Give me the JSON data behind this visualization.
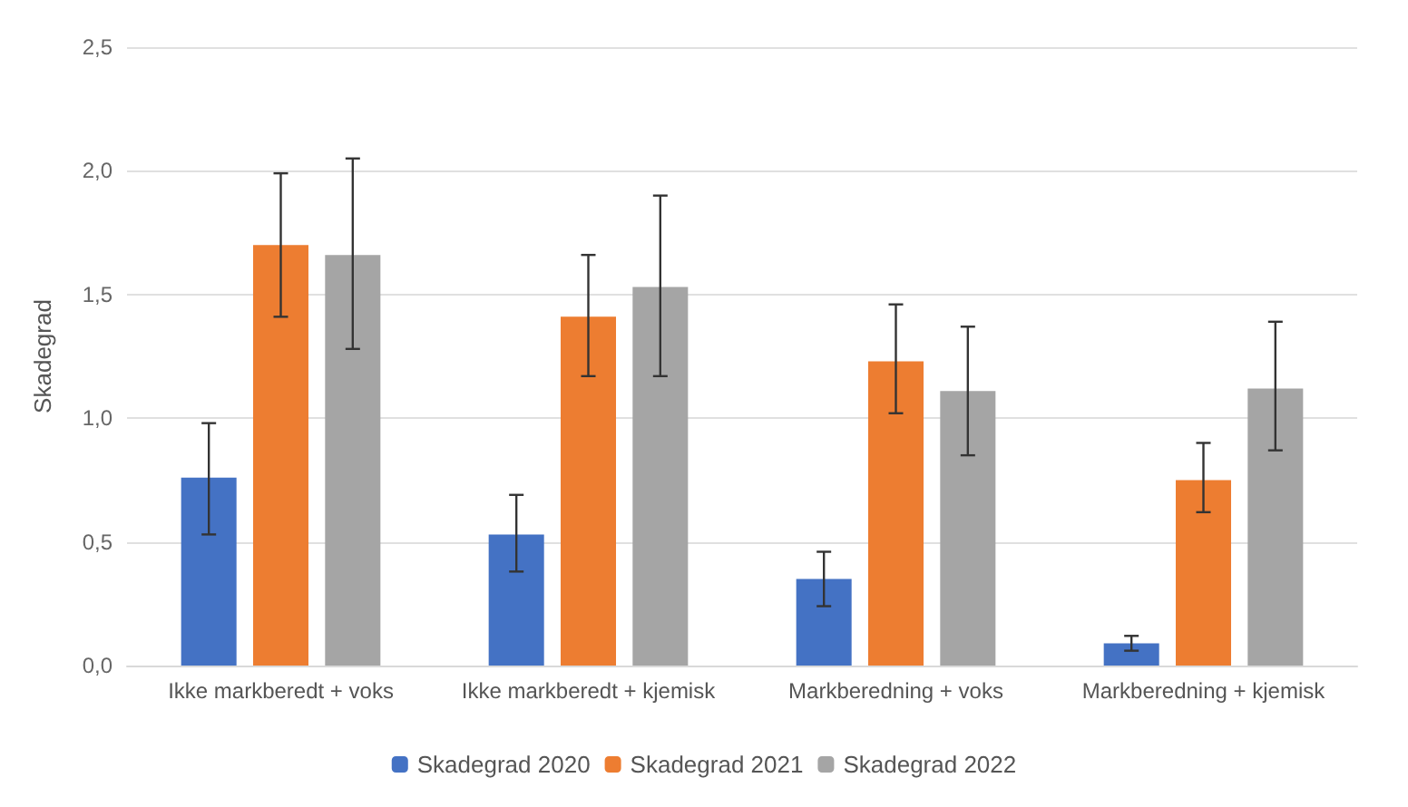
{
  "chart_data": {
    "type": "bar",
    "ylabel": "Skadegrad",
    "categories": [
      "Ikke markberedt + voks",
      "Ikke markberedt + kjemisk",
      "Markberedning + voks",
      "Markberedning + kjemisk"
    ],
    "series": [
      {
        "name": "Skadegrad 2020",
        "color": "#4472c4",
        "values": [
          0.76,
          0.53,
          0.35,
          0.09
        ],
        "errors": [
          [
            0.53,
            0.98
          ],
          [
            0.38,
            0.69
          ],
          [
            0.24,
            0.46
          ],
          [
            0.06,
            0.12
          ]
        ]
      },
      {
        "name": "Skadegrad 2021",
        "color": "#ed7d31",
        "values": [
          1.7,
          1.41,
          1.23,
          0.75
        ],
        "errors": [
          [
            1.41,
            1.99
          ],
          [
            1.17,
            1.66
          ],
          [
            1.02,
            1.46
          ],
          [
            0.62,
            0.9
          ]
        ]
      },
      {
        "name": "Skadegrad 2022",
        "color": "#a5a5a5",
        "values": [
          1.66,
          1.53,
          1.11,
          1.12
        ],
        "errors": [
          [
            1.28,
            2.05
          ],
          [
            1.17,
            1.9
          ],
          [
            0.85,
            1.37
          ],
          [
            0.87,
            1.39
          ]
        ]
      }
    ],
    "ylim": [
      0,
      2.5
    ],
    "yticks": [
      {
        "value": 0,
        "label": "0,0"
      },
      {
        "value": 0.5,
        "label": "0,5"
      },
      {
        "value": 1,
        "label": "1,0"
      },
      {
        "value": 1.5,
        "label": "1,5"
      },
      {
        "value": 2,
        "label": "2,0"
      },
      {
        "value": 2.5,
        "label": "2,5"
      }
    ],
    "grid": "y",
    "legend": "bottom"
  }
}
